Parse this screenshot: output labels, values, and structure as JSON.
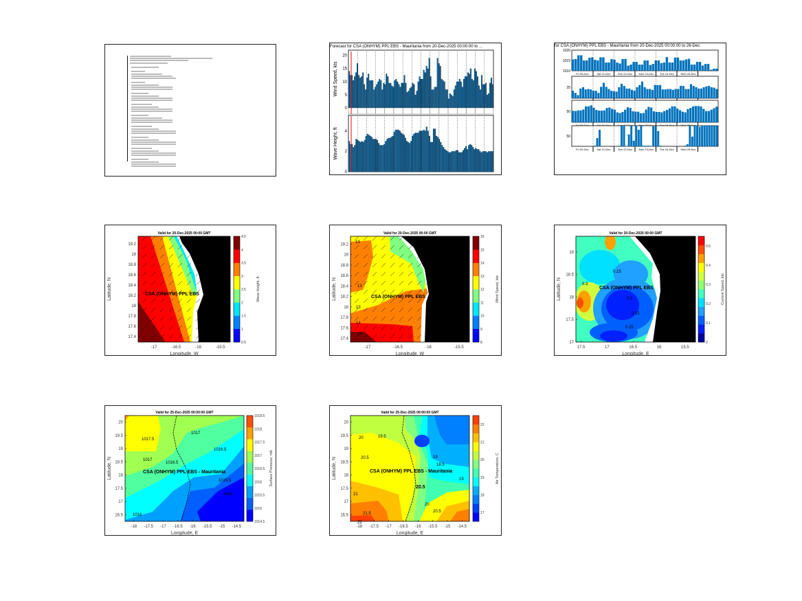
{
  "chart_data": [
    {
      "type": "table",
      "panel": "text-report",
      "title": ""
    },
    {
      "type": "bar",
      "panel": "timeseries-wind-wave",
      "title": "Forecast for CSA (ONHYM) PPL EBS - Mauritania from 20-Dec-2025 00:00:00 to ...",
      "subplots": [
        {
          "ylabel": "Wind Speed, kts",
          "ylim": [
            0,
            22
          ],
          "yticks": [
            0,
            5,
            10,
            15,
            20
          ],
          "values": [
            14,
            12.5,
            12.5,
            10.5,
            12,
            13.5,
            17,
            12.5,
            11.5,
            12,
            13.5,
            9,
            7,
            11.5,
            13,
            10.5,
            10.5,
            10.5,
            7,
            8,
            9,
            10,
            11,
            10.5,
            7,
            9.5,
            9,
            13,
            12,
            9.5,
            9.5,
            8.5,
            8,
            10.5,
            11,
            10,
            9,
            8,
            9.5,
            9.5,
            12.5,
            9.5,
            6,
            6.5,
            7.5,
            8,
            9.5,
            9,
            5,
            6.5,
            10,
            12,
            11,
            11,
            14.5,
            13.5,
            16,
            15,
            19,
            12,
            7,
            7,
            8,
            8,
            19,
            17,
            16,
            11,
            10.5,
            10,
            7,
            7,
            3.5,
            5.5,
            5,
            4.5,
            7,
            8.5,
            10,
            10,
            11,
            10,
            8,
            11,
            12,
            12,
            13.5,
            13,
            15,
            11,
            10.5,
            15,
            14,
            12,
            8.5,
            7,
            12.5,
            9,
            9,
            9.5,
            5,
            5.5,
            9.5,
            11.5,
            9
          ]
        },
        {
          "ylabel": "Wave Height, ft",
          "ylim": [
            0,
            5.5
          ],
          "yticks": [
            0,
            2,
            4
          ],
          "values": [
            3,
            2.7,
            2.7,
            2.4,
            2.6,
            3.2,
            3.1,
            3,
            2.9,
            3,
            2.9,
            3.1,
            3.5,
            3.7,
            3.6,
            3.5,
            3.4,
            3.2,
            3.2,
            3.2,
            3.1,
            2.8,
            2.6,
            2.6,
            2.6,
            2.7,
            3,
            3.2,
            3.3,
            3.3,
            3.4,
            3.5,
            3.9,
            4.1,
            4.1,
            4.1,
            4,
            3.8,
            3.7,
            3.6,
            3.3,
            3,
            2.9,
            2.8,
            3,
            3.5,
            3.7,
            3.8,
            3.8,
            3.8,
            4,
            4,
            4,
            4.1,
            4,
            4.4,
            4,
            3.5,
            2.9,
            2.9,
            4.2,
            4.2,
            3.5,
            3.4,
            3.2,
            2.9,
            2.6,
            2.4,
            2.2,
            2.1,
            2,
            1.9,
            1.9,
            2,
            2,
            2,
            2.1,
            2.1,
            1.9,
            1.9,
            1.9,
            2.1,
            2.3,
            2.5,
            2.2,
            2.6,
            2.7,
            2.6,
            2.4,
            2.2,
            2.3,
            2.2,
            2.2,
            2,
            1.9,
            2.0,
            2.0,
            2.0,
            1.9,
            2.0,
            2.0,
            2.0,
            2.0
          ]
        }
      ]
    },
    {
      "type": "bar",
      "panel": "timeseries-four",
      "title": "for CSA (ONHYM) PPL EBS - Mauritania from 20-Dec-2025 00:00:00 to 26-Dec",
      "day_labels": [
        "Fri 20-Dec",
        "Sat 21-Dec",
        "Sun 22-Dec",
        "Mon 23-Dec",
        "Tue 24-Dec",
        "Wed 25-Dec"
      ],
      "subplots": [
        {
          "ylim": [
            1010,
            1020
          ],
          "yticks": [
            1010,
            1015,
            1020
          ],
          "values": [
            1015.5,
            1015.7,
            1017.5,
            1017.5,
            1015,
            1015,
            1016.3,
            1016.5,
            1015.3,
            1015,
            1016.5,
            1016.5,
            1014,
            1014,
            1015.7,
            1015.4,
            1014,
            1013.5,
            1015.7,
            1015.7,
            1012.5,
            1013,
            1014.3,
            1014.3,
            1013,
            1013,
            1015,
            1015,
            1012.8,
            1013.3,
            1015,
            1015,
            1013.7,
            1014,
            1016.6,
            1014,
            1014,
            1016.4,
            1016.4,
            1015,
            1015,
            1015.5,
            1015.8,
            1013,
            1013,
            1014.3,
            1014.3,
            1012.5,
            1013.3,
            1013.3,
            1010.5,
            1011,
            1011
          ]
        },
        {
          "ylim": [
            0,
            50
          ],
          "yticks": [
            25
          ],
          "values": [
            17,
            12,
            7,
            22,
            25,
            20,
            21,
            20,
            17,
            17,
            12,
            26,
            35,
            26,
            21,
            17,
            16,
            15,
            25,
            33,
            28,
            22,
            22,
            19,
            17,
            25,
            30,
            38,
            25,
            21,
            21,
            19,
            30,
            30,
            30,
            20,
            20,
            21,
            21,
            19,
            21,
            21,
            28,
            28,
            21,
            21,
            32,
            28,
            25,
            22,
            22,
            25,
            27,
            28,
            25,
            24,
            21
          ]
        },
        {
          "ylim": [
            0,
            100
          ],
          "yticks": [
            50
          ],
          "values": [
            52,
            51,
            54,
            54,
            58,
            72,
            72,
            77,
            66,
            56,
            53,
            53,
            54,
            65,
            67,
            61,
            57,
            45,
            42,
            47,
            57,
            68,
            65,
            50,
            48,
            48,
            41,
            42,
            58,
            70,
            67,
            50,
            47,
            47,
            45,
            51,
            56,
            63,
            72,
            72,
            62,
            55,
            48,
            45,
            60,
            65,
            72,
            74,
            74,
            72,
            61,
            51,
            51,
            57,
            64,
            71
          ]
        },
        {
          "ylim": [
            0,
            100
          ],
          "yticks": [
            50
          ],
          "values": [
            0,
            0,
            0,
            0,
            0,
            0,
            0,
            0,
            0,
            3,
            40,
            80,
            0,
            0,
            0,
            0,
            0,
            0,
            0,
            3,
            100,
            100,
            0,
            58,
            100,
            27,
            100,
            80,
            100,
            3,
            3,
            3,
            0,
            97,
            100,
            74,
            3,
            0,
            0,
            0,
            0,
            0,
            0,
            0,
            0,
            0,
            3,
            10,
            100,
            47,
            100,
            100,
            95,
            100,
            100,
            100,
            100,
            100,
            100,
            100
          ]
        }
      ]
    },
    {
      "type": "heatmap",
      "panel": "wave-height-map",
      "title": "Valid for 20-Dec-2025 00:00 GMT",
      "xlabel": "Longitude, W",
      "ylabel": "Latitude, N",
      "xlim": [
        -17.36,
        -15.28
      ],
      "ylim": [
        17.29,
        19.35
      ],
      "xticks": [
        -17,
        -16.5,
        -16,
        -15.5
      ],
      "xtick_labels": [
        "-17",
        "-16.5",
        "-16",
        "-15.5"
      ],
      "yticks": [
        17.4,
        17.6,
        17.8,
        18,
        18.2,
        18.4,
        18.6,
        18.8,
        19,
        19.2
      ],
      "ytick_labels": [
        "17.4",
        "17.6",
        "17.8",
        "18",
        "18.2",
        "18.4",
        "18.6",
        "18.8",
        "19",
        "19.2"
      ],
      "site_label": "CSA (ONHYM) PPL EBS",
      "colorbar": {
        "label": "Wave Height, ft",
        "range": [
          0.5,
          4.5
        ],
        "ticks": [
          0.5,
          1,
          1.5,
          2,
          2.5,
          3,
          3.5,
          4,
          4.5
        ],
        "tick_labels": [
          "0.5",
          "1",
          "1.5",
          "2",
          "2.5",
          "3",
          "3.5",
          "4",
          "4.5"
        ],
        "colors": [
          "#0000ff",
          "#0080ff",
          "#00e5ff",
          "#80ff80",
          "#ffff00",
          "#ff8000",
          "#ff0000",
          "#800000"
        ]
      }
    },
    {
      "type": "heatmap",
      "panel": "wind-speed-map",
      "title": "Valid for 20-Dec-2025 00:00 GMT",
      "xlabel": "Longitude, W",
      "ylabel": "Latitude, N",
      "xlim": [
        -17.28,
        -15.33
      ],
      "ylim": [
        17.33,
        19.35
      ],
      "xticks": [
        -17,
        -16.5,
        -16,
        -15.5
      ],
      "xtick_labels": [
        "-17",
        "-16.5",
        "-16",
        "-15.5"
      ],
      "yticks": [
        17.4,
        17.6,
        17.8,
        18,
        18.2,
        18.4,
        18.6,
        18.8,
        19,
        19.2
      ],
      "ytick_labels": [
        "17.4",
        "17.6",
        "17.8",
        "18",
        "18.2",
        "18.4",
        "18.6",
        "18.8",
        "19",
        "19.2"
      ],
      "site_label": "CSA (ONHYM) PPL EBS",
      "contour_labels": [
        "13",
        "13",
        "13",
        "14",
        "15",
        "11",
        "12"
      ],
      "colorbar": {
        "label": "Wind Speed, kts",
        "range": [
          8,
          16
        ],
        "ticks": [
          8,
          9,
          10,
          11,
          12,
          13,
          14,
          15,
          16
        ],
        "tick_labels": [
          "8",
          "9",
          "10",
          "11",
          "12",
          "13",
          "14",
          "15",
          "16"
        ],
        "colors": [
          "#0000ff",
          "#0080ff",
          "#00e5ff",
          "#80ff80",
          "#ffff00",
          "#ff8000",
          "#ff0000",
          "#800000"
        ]
      }
    },
    {
      "type": "heatmap",
      "panel": "current-speed-map",
      "title": "Valid for 20-Dec-2025 00:00 GMT",
      "xlabel": "Longitude, E",
      "ylabel": "Latitude, N",
      "xlim": [
        17.6,
        15.3
      ],
      "ylim": [
        17,
        19.35
      ],
      "xticks": [
        17.5,
        17,
        16.5,
        16,
        15.5
      ],
      "xtick_labels": [
        "17.5",
        "17",
        "16.5",
        "16",
        "15.5"
      ],
      "yticks": [
        17,
        17.5,
        18,
        18.5,
        19
      ],
      "ytick_labels": [
        "17",
        "17.5",
        "18",
        "18.5",
        "19"
      ],
      "site_label": "CSA (ONHYM) PPL EBS",
      "contour_labels": [
        "0.3",
        "0.15",
        "0.3",
        "0.15",
        "0.1",
        "0.15",
        "0.25",
        "0.15",
        "0.2"
      ],
      "colorbar": {
        "label": "Current Speed, kts",
        "range": [
          0,
          0.55
        ],
        "ticks": [
          0,
          0.1,
          0.2,
          0.3,
          0.4,
          0.5
        ],
        "tick_labels": [
          "0",
          "0.1",
          "0.2",
          "0.3",
          "0.4",
          "0.5"
        ],
        "colors": [
          "#0000a0",
          "#0020ff",
          "#0060ff",
          "#20a0ff",
          "#00e0ff",
          "#40ffc0",
          "#90ff70",
          "#d0ff40",
          "#ffff00",
          "#ffa000",
          "#ff5000",
          "#ff0000"
        ]
      }
    },
    {
      "type": "heatmap",
      "panel": "pressure-map",
      "title": "Valid for 25-Dec-2025 00:00:00 GMT",
      "xlabel": "Longitude, E",
      "ylabel": "Latitude, N",
      "xlim": [
        -18.3,
        -14.25
      ],
      "ylim": [
        16.25,
        20.25
      ],
      "xticks": [
        -18,
        -17.5,
        -17,
        -16.5,
        -16,
        -15.5,
        -15,
        -14.5
      ],
      "xtick_labels": [
        "-18",
        "-17.5",
        "-17",
        "-16.5",
        "-16",
        "-15.5",
        "-15",
        "-14.5"
      ],
      "yticks": [
        16.5,
        17,
        17.5,
        18,
        18.5,
        19,
        19.5,
        20
      ],
      "ytick_labels": [
        "16.5",
        "17",
        "17.5",
        "18",
        "18.5",
        "19",
        "19.5",
        "20"
      ],
      "site_label": "CSA (ONHYM) PPL EBS  - Mauritania",
      "contour_labels": [
        "1017.5",
        "1017",
        "1017",
        "1016.5",
        "1016.5",
        "1016",
        "1016",
        "1015.5",
        "1015.5",
        "1015"
      ],
      "colorbar": {
        "label": "Surface Pressure, mb",
        "range": [
          1014.5,
          1018.5
        ],
        "ticks": [
          1014.5,
          1015,
          1015.5,
          1016,
          1016.5,
          1017,
          1017.5,
          1018,
          1018.5
        ],
        "tick_labels": [
          "1014.5",
          "1015",
          "1015.5",
          "1016",
          "1016.5",
          "1017",
          "1017.5",
          "1018",
          "1018.5"
        ],
        "colors": [
          "#0000ff",
          "#0060ff",
          "#00a0ff",
          "#00ffff",
          "#50ffa0",
          "#a0ff50",
          "#ffff00",
          "#ffa000",
          "#ff5000"
        ]
      }
    },
    {
      "type": "heatmap",
      "panel": "air-temperature-map",
      "title": "Valid for 25-Dec-2025 00:00:00 GMT",
      "xlabel": "Longitude, E",
      "ylabel": "Latitude, N",
      "xlim": [
        -18.3,
        -14.25
      ],
      "ylim": [
        16.25,
        20.25
      ],
      "xticks": [
        -18,
        -17.5,
        -17,
        -16.5,
        -16,
        -15.5,
        -15,
        -14.5
      ],
      "xtick_labels": [
        "-18",
        "-17.5",
        "-17",
        "-16.5",
        "-16",
        "-15.5",
        "-15",
        "-14.5"
      ],
      "yticks": [
        16.5,
        17,
        17.5,
        18,
        18.5,
        19,
        19.5,
        20
      ],
      "ytick_labels": [
        "16.5",
        "17",
        "17.5",
        "18",
        "18.5",
        "19",
        "19.5",
        "20"
      ],
      "site_label": "CSA (ONHYM) PPL EBS - Mauritania",
      "contour_labels": [
        "20",
        "19.5",
        "20.5",
        "21",
        "21.5",
        "22",
        "20",
        "18",
        "18.5",
        "19",
        "17.5",
        "20.5",
        "19.5",
        "20",
        "20.5",
        "21",
        "21"
      ],
      "colorbar": {
        "label": "Air Temperature, C",
        "range": [
          16.5,
          22.5
        ],
        "ticks": [
          17,
          18,
          19,
          20,
          21,
          22
        ],
        "tick_labels": [
          "17",
          "18",
          "19",
          "20",
          "21",
          "22"
        ],
        "colors": [
          "#0000ff",
          "#0040ff",
          "#0080ff",
          "#00b0ff",
          "#00ffff",
          "#40ffb0",
          "#80ff80",
          "#c0ff40",
          "#ffff00",
          "#ffc000",
          "#ff8000",
          "#ff4000"
        ]
      }
    }
  ]
}
